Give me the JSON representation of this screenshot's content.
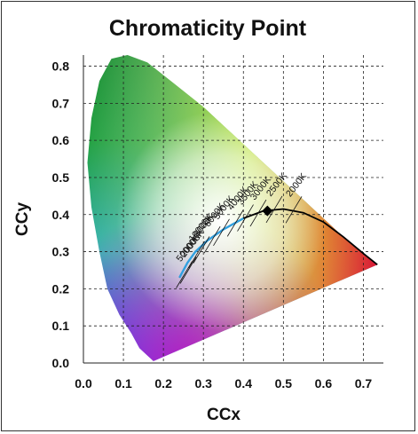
{
  "chart_data": {
    "type": "scatter",
    "title": "Chromaticity Point",
    "xlabel": "CCx",
    "ylabel": "CCy",
    "xlim": [
      0.0,
      0.75
    ],
    "ylim": [
      0.0,
      0.83
    ],
    "xticks": [
      "0.0",
      "0.1",
      "0.2",
      "0.3",
      "0.4",
      "0.5",
      "0.6",
      "0.7"
    ],
    "yticks": [
      "0.0",
      "0.1",
      "0.2",
      "0.3",
      "0.4",
      "0.5",
      "0.6",
      "0.7",
      "0.8"
    ],
    "grid": true,
    "grid_style": "dashed",
    "point": {
      "x": 0.46,
      "y": 0.41,
      "marker": "diamond",
      "color": "#000000"
    },
    "cct_labels": [
      "50000K",
      "20000K",
      "10000K",
      "8000K",
      "6000K",
      "5000K",
      "4000K",
      "3500K",
      "3000K",
      "2500K",
      "2000K"
    ],
    "cct_positions": [
      {
        "x": 0.252,
        "y": 0.238
      },
      {
        "x": 0.262,
        "y": 0.25
      },
      {
        "x": 0.283,
        "y": 0.292
      },
      {
        "x": 0.295,
        "y": 0.305
      },
      {
        "x": 0.322,
        "y": 0.332
      },
      {
        "x": 0.345,
        "y": 0.352
      },
      {
        "x": 0.38,
        "y": 0.377
      },
      {
        "x": 0.405,
        "y": 0.391
      },
      {
        "x": 0.437,
        "y": 0.404
      },
      {
        "x": 0.477,
        "y": 0.414
      },
      {
        "x": 0.526,
        "y": 0.413
      }
    ],
    "planckian_locus": [
      {
        "x": 0.24,
        "y": 0.23
      },
      {
        "x": 0.26,
        "y": 0.27
      },
      {
        "x": 0.28,
        "y": 0.3
      },
      {
        "x": 0.31,
        "y": 0.33
      },
      {
        "x": 0.35,
        "y": 0.36
      },
      {
        "x": 0.4,
        "y": 0.39
      },
      {
        "x": 0.45,
        "y": 0.41
      },
      {
        "x": 0.5,
        "y": 0.415
      },
      {
        "x": 0.55,
        "y": 0.405
      },
      {
        "x": 0.6,
        "y": 0.38
      },
      {
        "x": 0.65,
        "y": 0.34
      },
      {
        "x": 0.7,
        "y": 0.295
      },
      {
        "x": 0.735,
        "y": 0.265
      }
    ],
    "spectral_locus": [
      {
        "x": 0.175,
        "y": 0.005
      },
      {
        "x": 0.17,
        "y": 0.01
      },
      {
        "x": 0.16,
        "y": 0.02
      },
      {
        "x": 0.14,
        "y": 0.04
      },
      {
        "x": 0.12,
        "y": 0.08
      },
      {
        "x": 0.09,
        "y": 0.13
      },
      {
        "x": 0.06,
        "y": 0.2
      },
      {
        "x": 0.04,
        "y": 0.3
      },
      {
        "x": 0.02,
        "y": 0.42
      },
      {
        "x": 0.01,
        "y": 0.54
      },
      {
        "x": 0.02,
        "y": 0.66
      },
      {
        "x": 0.04,
        "y": 0.76
      },
      {
        "x": 0.07,
        "y": 0.82
      },
      {
        "x": 0.11,
        "y": 0.83
      },
      {
        "x": 0.16,
        "y": 0.81
      },
      {
        "x": 0.23,
        "y": 0.75
      },
      {
        "x": 0.3,
        "y": 0.69
      },
      {
        "x": 0.37,
        "y": 0.62
      },
      {
        "x": 0.44,
        "y": 0.55
      },
      {
        "x": 0.51,
        "y": 0.48
      },
      {
        "x": 0.58,
        "y": 0.41
      },
      {
        "x": 0.65,
        "y": 0.34
      },
      {
        "x": 0.735,
        "y": 0.265
      }
    ]
  }
}
